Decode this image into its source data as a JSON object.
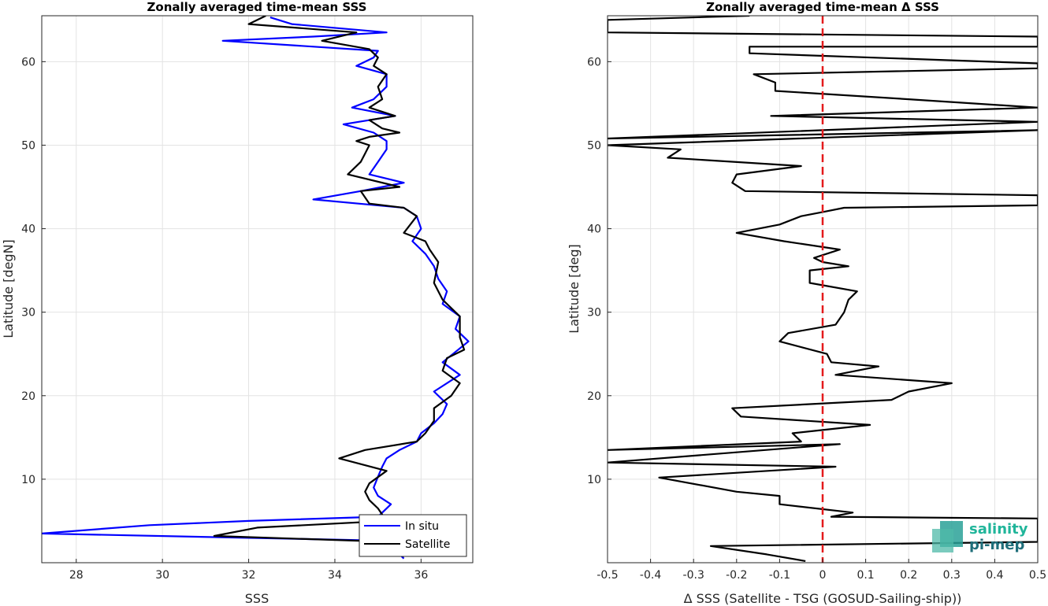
{
  "chart_data": [
    {
      "type": "line",
      "title": "Zonally averaged time-mean SSS",
      "xlabel": "SSS",
      "ylabel": "Latitude [degN]",
      "xlim": [
        27.2,
        37.2
      ],
      "ylim": [
        0,
        65.5
      ],
      "xticks": [
        28,
        30,
        32,
        34,
        36
      ],
      "yticks": [
        10,
        20,
        30,
        40,
        50,
        60
      ],
      "grid": true,
      "legend": "bottom-right",
      "series": [
        {
          "name": "In situ",
          "color": "#0000ff",
          "points": [
            [
              35.6,
              0.5
            ],
            [
              35.3,
              2.0
            ],
            [
              34.6,
              2.7
            ],
            [
              27.2,
              3.5
            ],
            [
              29.7,
              4.5
            ],
            [
              32.0,
              5.0
            ],
            [
              35.0,
              5.5
            ],
            [
              35.3,
              7.0
            ],
            [
              35.0,
              8.0
            ],
            [
              34.9,
              9.0
            ],
            [
              35.0,
              10.3
            ],
            [
              35.1,
              11.5
            ],
            [
              35.2,
              12.5
            ],
            [
              35.5,
              13.5
            ],
            [
              35.9,
              14.5
            ],
            [
              36.0,
              15.5
            ],
            [
              36.3,
              16.7
            ],
            [
              36.5,
              17.8
            ],
            [
              36.6,
              19.0
            ],
            [
              36.3,
              20.5
            ],
            [
              36.9,
              22.5
            ],
            [
              36.5,
              24.0
            ],
            [
              37.1,
              26.5
            ],
            [
              36.8,
              28.0
            ],
            [
              36.9,
              29.5
            ],
            [
              36.5,
              31.0
            ],
            [
              36.6,
              32.5
            ],
            [
              36.4,
              34.0
            ],
            [
              36.3,
              35.5
            ],
            [
              36.1,
              37.0
            ],
            [
              35.8,
              38.5
            ],
            [
              36.0,
              40.0
            ],
            [
              35.9,
              41.5
            ],
            [
              35.6,
              42.5
            ],
            [
              33.5,
              43.5
            ],
            [
              34.6,
              44.5
            ],
            [
              35.6,
              45.5
            ],
            [
              34.8,
              46.5
            ],
            [
              35.0,
              48.0
            ],
            [
              35.2,
              49.5
            ],
            [
              35.2,
              50.5
            ],
            [
              34.9,
              51.5
            ],
            [
              34.2,
              52.5
            ],
            [
              35.4,
              53.5
            ],
            [
              34.4,
              54.5
            ],
            [
              34.9,
              55.5
            ],
            [
              35.2,
              57.0
            ],
            [
              35.2,
              58.5
            ],
            [
              34.5,
              59.5
            ],
            [
              34.9,
              60.5
            ],
            [
              35.0,
              61.3
            ],
            [
              31.4,
              62.5
            ],
            [
              33.5,
              63.0
            ],
            [
              35.2,
              63.5
            ],
            [
              33.0,
              64.5
            ],
            [
              32.5,
              65.3
            ]
          ]
        },
        {
          "name": "Satellite",
          "color": "#000000",
          "points": [
            [
              35.6,
              0.7
            ],
            [
              35.4,
              2.0
            ],
            [
              35.2,
              2.3
            ],
            [
              34.7,
              2.6
            ],
            [
              31.2,
              3.2
            ],
            [
              32.2,
              4.2
            ],
            [
              35.2,
              5.0
            ],
            [
              35.0,
              6.5
            ],
            [
              34.8,
              7.5
            ],
            [
              34.7,
              8.5
            ],
            [
              34.8,
              9.5
            ],
            [
              35.2,
              11.0
            ],
            [
              34.1,
              12.5
            ],
            [
              34.7,
              13.5
            ],
            [
              35.9,
              14.5
            ],
            [
              36.1,
              15.5
            ],
            [
              36.3,
              17.0
            ],
            [
              36.3,
              18.5
            ],
            [
              36.7,
              20.0
            ],
            [
              36.9,
              21.5
            ],
            [
              36.5,
              23.0
            ],
            [
              36.6,
              24.5
            ],
            [
              37.0,
              25.5
            ],
            [
              36.9,
              27.0
            ],
            [
              36.9,
              29.5
            ],
            [
              36.5,
              31.5
            ],
            [
              36.3,
              33.5
            ],
            [
              36.4,
              36.0
            ],
            [
              36.2,
              37.5
            ],
            [
              36.1,
              38.5
            ],
            [
              35.6,
              39.5
            ],
            [
              35.9,
              41.5
            ],
            [
              35.6,
              42.5
            ],
            [
              34.8,
              43.0
            ],
            [
              34.6,
              44.5
            ],
            [
              35.5,
              45.0
            ],
            [
              34.3,
              46.5
            ],
            [
              34.6,
              48.0
            ],
            [
              34.7,
              49.0
            ],
            [
              34.8,
              50.0
            ],
            [
              34.5,
              50.5
            ],
            [
              34.8,
              51.0
            ],
            [
              35.5,
              51.5
            ],
            [
              35.1,
              52.0
            ],
            [
              34.8,
              53.0
            ],
            [
              35.4,
              53.5
            ],
            [
              34.8,
              54.5
            ],
            [
              35.1,
              55.5
            ],
            [
              35.0,
              57.0
            ],
            [
              35.2,
              58.5
            ],
            [
              34.9,
              59.5
            ],
            [
              35.0,
              60.5
            ],
            [
              34.8,
              61.5
            ],
            [
              33.7,
              62.5
            ],
            [
              34.5,
              63.5
            ],
            [
              32.0,
              64.5
            ],
            [
              32.4,
              65.5
            ]
          ]
        }
      ]
    },
    {
      "type": "line",
      "title": "Zonally averaged time-mean Δ SSS",
      "xlabel": "Δ SSS (Satellite - TSG (GOSUD-Sailing-ship))",
      "ylabel": "Latitude [deg]",
      "xlim": [
        -0.5,
        0.5
      ],
      "ylim": [
        0,
        65.5
      ],
      "xticks": [
        -0.5,
        -0.4,
        -0.3,
        -0.2,
        -0.1,
        0,
        0.1,
        0.2,
        0.3,
        0.4,
        0.5
      ],
      "xticklabels": [
        "-0.5",
        "-0.4",
        "-0.3",
        "-0.2",
        "-0.1",
        "0",
        "0.1",
        "0.2",
        "0.3",
        "0.4",
        "0.5"
      ],
      "yticks": [
        10,
        20,
        30,
        40,
        50,
        60
      ],
      "grid": true,
      "reference_line": {
        "x": 0,
        "color": "#e41a1c",
        "style": "dashed"
      },
      "series": [
        {
          "color": "#000000",
          "points": [
            [
              -0.04,
              0.2
            ],
            [
              -0.13,
              1.0
            ],
            [
              -0.26,
              2.0
            ],
            [
              0.5,
              2.5
            ],
            [
              0.5,
              5.3
            ],
            [
              0.02,
              5.5
            ],
            [
              0.07,
              6.0
            ],
            [
              -0.1,
              7.0
            ],
            [
              -0.1,
              8.0
            ],
            [
              -0.2,
              8.5
            ],
            [
              -0.38,
              10.2
            ],
            [
              0.03,
              11.5
            ],
            [
              -0.5,
              12.0
            ],
            [
              0.04,
              14.2
            ],
            [
              -0.5,
              13.5
            ],
            [
              -0.05,
              14.5
            ],
            [
              -0.07,
              15.5
            ],
            [
              0.11,
              16.5
            ],
            [
              -0.19,
              17.5
            ],
            [
              -0.21,
              18.5
            ],
            [
              0.16,
              19.5
            ],
            [
              0.2,
              20.5
            ],
            [
              0.3,
              21.5
            ],
            [
              0.03,
              22.5
            ],
            [
              0.13,
              23.5
            ],
            [
              0.02,
              24.0
            ],
            [
              0.01,
              25.0
            ],
            [
              -0.1,
              26.5
            ],
            [
              -0.08,
              27.5
            ],
            [
              0.03,
              28.5
            ],
            [
              0.05,
              30.0
            ],
            [
              0.06,
              31.5
            ],
            [
              0.08,
              32.5
            ],
            [
              -0.03,
              33.5
            ],
            [
              -0.03,
              35.0
            ],
            [
              0.06,
              35.5
            ],
            [
              0.0,
              36.0
            ],
            [
              -0.02,
              36.5
            ],
            [
              0.04,
              37.5
            ],
            [
              -0.09,
              38.5
            ],
            [
              -0.2,
              39.5
            ],
            [
              -0.1,
              40.5
            ],
            [
              -0.05,
              41.5
            ],
            [
              0.0,
              42.0
            ],
            [
              0.05,
              42.5
            ],
            [
              0.5,
              42.8
            ],
            [
              0.5,
              44.0
            ],
            [
              -0.18,
              44.5
            ],
            [
              -0.21,
              45.5
            ],
            [
              -0.2,
              46.5
            ],
            [
              -0.05,
              47.5
            ],
            [
              -0.36,
              48.5
            ],
            [
              -0.33,
              49.5
            ],
            [
              -0.5,
              50.0
            ],
            [
              0.5,
              51.8
            ],
            [
              -0.5,
              50.8
            ],
            [
              0.5,
              52.8
            ],
            [
              -0.12,
              53.5
            ],
            [
              0.5,
              54.5
            ],
            [
              0.2,
              55.5
            ],
            [
              -0.11,
              56.5
            ],
            [
              -0.11,
              57.5
            ],
            [
              -0.16,
              58.5
            ],
            [
              0.5,
              59.2
            ],
            [
              0.5,
              59.8
            ],
            [
              -0.17,
              61.0
            ],
            [
              -0.17,
              61.8
            ],
            [
              0.5,
              61.8
            ],
            [
              0.5,
              63.0
            ],
            [
              -0.5,
              63.5
            ],
            [
              -0.5,
              65.0
            ],
            [
              -0.17,
              65.5
            ]
          ]
        }
      ]
    }
  ],
  "logo": {
    "line1": "salinity",
    "line2": "pi-mep"
  }
}
